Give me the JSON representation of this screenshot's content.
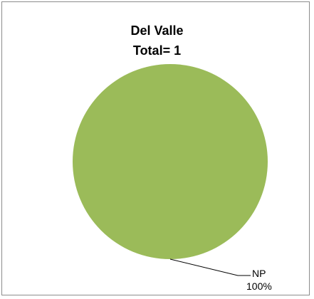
{
  "chart_data": {
    "type": "pie",
    "title": "Del Valle",
    "subtitle": "Total= 1",
    "slices": [
      {
        "label": "NP",
        "value": 1,
        "percent_label": "100%",
        "color": "#9bbb59"
      }
    ],
    "legend": "none"
  }
}
